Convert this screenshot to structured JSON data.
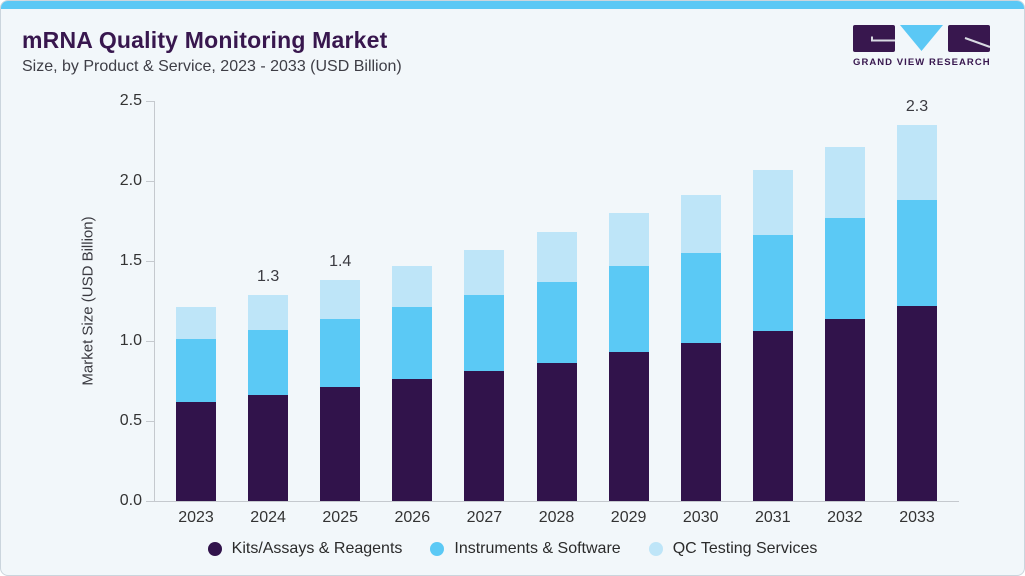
{
  "header": {
    "title": "mRNA Quality Monitoring Market",
    "subtitle": "Size, by Product & Service, 2023 - 2033 (USD Billion)"
  },
  "logo": {
    "wordmark": "GRAND VIEW RESEARCH",
    "mark_colors": {
      "blocks": "#38174E",
      "triangle": "#5BC8F5",
      "lines": "#D9DAE3"
    }
  },
  "chart_data": {
    "type": "bar",
    "stacked": true,
    "title": "mRNA Quality Monitoring Market Size, by Product & Service, 2023 - 2033 (USD Billion)",
    "ylabel": "Market Size (USD Billion)",
    "xlabel": "",
    "categories": [
      "2023",
      "2024",
      "2025",
      "2026",
      "2027",
      "2028",
      "2029",
      "2030",
      "2031",
      "2032",
      "2033"
    ],
    "series": [
      {
        "name": "Kits/Assays & Reagents",
        "color": "#31134B",
        "values": [
          0.62,
          0.66,
          0.71,
          0.76,
          0.81,
          0.86,
          0.93,
          0.99,
          1.06,
          1.14,
          1.22
        ]
      },
      {
        "name": "Instruments & Software",
        "color": "#5BC9F5",
        "values": [
          0.39,
          0.41,
          0.43,
          0.45,
          0.48,
          0.51,
          0.54,
          0.56,
          0.6,
          0.63,
          0.66
        ]
      },
      {
        "name": "QC Testing Services",
        "color": "#BEE5F8",
        "values": [
          0.2,
          0.22,
          0.24,
          0.26,
          0.28,
          0.31,
          0.33,
          0.36,
          0.41,
          0.44,
          0.47
        ]
      }
    ],
    "total_labels": [
      "",
      "1.3",
      "1.4",
      "",
      "",
      "",
      "",
      "",
      "",
      "",
      "2.3"
    ],
    "ytick_labels": [
      "0.0",
      "0.5",
      "1.0",
      "1.5",
      "2.0",
      "2.5"
    ],
    "ylim": [
      0,
      2.5
    ],
    "grid": false,
    "legend_position": "bottom"
  },
  "colors": {
    "accent_strip": "#5BC8F5",
    "card_background": "#F2F7FA",
    "card_border": "#CBD5DD",
    "axis": "#C5C9CE"
  }
}
